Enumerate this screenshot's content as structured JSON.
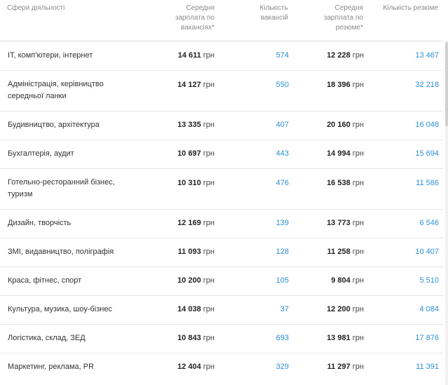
{
  "columns": {
    "sphere": "Сфери діяльності",
    "salary_vacancy": [
      "Середня",
      "зарплата по",
      "вакансіях*"
    ],
    "vacancies": [
      "Кількість",
      "вакансій"
    ],
    "salary_resume": [
      "Середня",
      "зарплата по",
      "резюме*"
    ],
    "resumes": "Кількість резюме"
  },
  "currency": "грн",
  "rows": [
    {
      "name": [
        "ІТ, комп'ютери, інтернет"
      ],
      "salary_vacancy": "14 611",
      "vacancies": "574",
      "salary_resume": "12 228",
      "resumes": "13 467"
    },
    {
      "name": [
        "Адміністрація, керівництво",
        "середньої ланки"
      ],
      "salary_vacancy": "14 127",
      "vacancies": "550",
      "salary_resume": "18 396",
      "resumes": "32 218"
    },
    {
      "name": [
        "Будивництво, архітектура"
      ],
      "salary_vacancy": "13 335",
      "vacancies": "407",
      "salary_resume": "20 160",
      "resumes": "16 048"
    },
    {
      "name": [
        "Бухгалтерія, аудит"
      ],
      "salary_vacancy": "10 697",
      "vacancies": "443",
      "salary_resume": "14 994",
      "resumes": "15 694"
    },
    {
      "name": [
        "Готельно-ресторанний бізнес,",
        "туризм"
      ],
      "salary_vacancy": "10 310",
      "vacancies": "476",
      "salary_resume": "16 538",
      "resumes": "11 586"
    },
    {
      "name": [
        "Дизайн, творчість"
      ],
      "salary_vacancy": "12 169",
      "vacancies": "139",
      "salary_resume": "13 773",
      "resumes": "6 546"
    },
    {
      "name": [
        "ЗМІ, видавництво, поліграфія"
      ],
      "salary_vacancy": "11 093",
      "vacancies": "128",
      "salary_resume": "11 258",
      "resumes": "10 407"
    },
    {
      "name": [
        "Краса, фітнес, спорт"
      ],
      "salary_vacancy": "10 200",
      "vacancies": "105",
      "salary_resume": "9 804",
      "resumes": "5 510"
    },
    {
      "name": [
        "Культура, музика, шоу-бізнес"
      ],
      "salary_vacancy": "14 038",
      "vacancies": "37",
      "salary_resume": "12 200",
      "resumes": "4 084"
    },
    {
      "name": [
        "Логістика, склад, ЗЕД"
      ],
      "salary_vacancy": "10 843",
      "vacancies": "693",
      "salary_resume": "13 981",
      "resumes": "17 876"
    },
    {
      "name": [
        "Маркетинг, реклама, PR"
      ],
      "salary_vacancy": "12 404",
      "vacancies": "329",
      "salary_resume": "11 297",
      "resumes": "11 391"
    }
  ]
}
